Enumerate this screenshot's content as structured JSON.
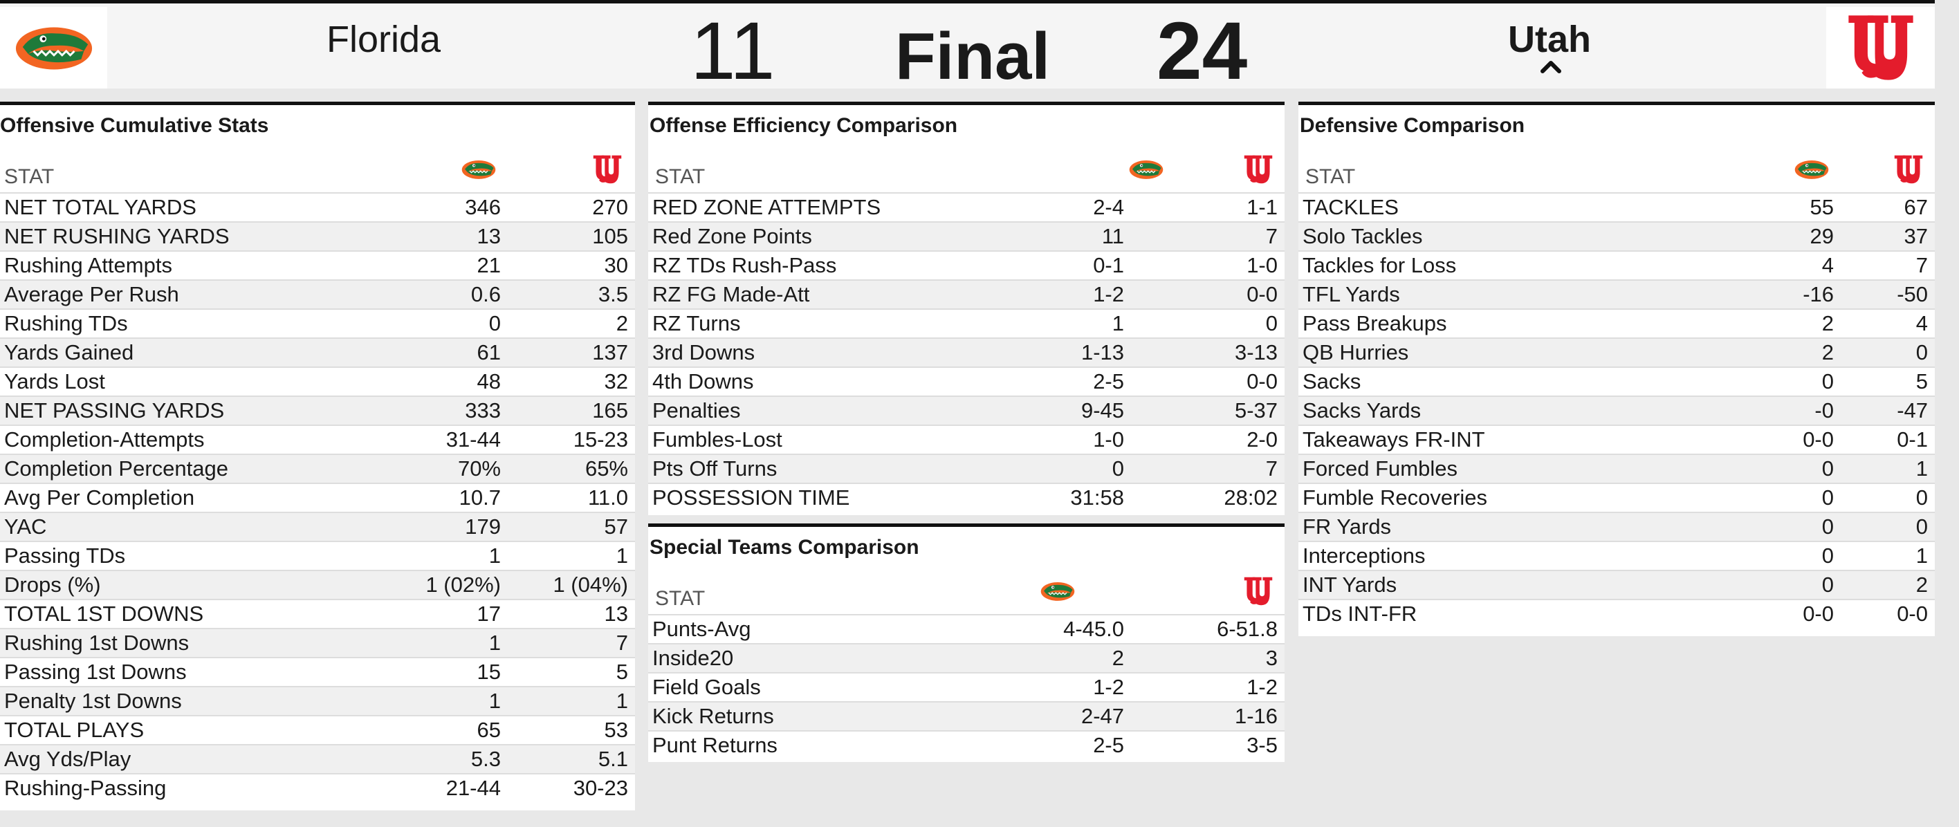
{
  "scoreboard": {
    "home_team": "Florida",
    "home_score": "11",
    "status": "Final",
    "away_score": "24",
    "away_team": "Utah"
  },
  "colors": {
    "florida_green": "#1e7a3a",
    "florida_orange": "#f26522",
    "utah_red": "#e41c2c"
  },
  "stat_header": "STAT",
  "offensive": {
    "title": "Offensive Cumulative Stats",
    "rows": [
      {
        "label": "NET TOTAL YARDS",
        "fla": "346",
        "utah": "270"
      },
      {
        "label": "NET RUSHING YARDS",
        "fla": "13",
        "utah": "105"
      },
      {
        "label": "Rushing Attempts",
        "fla": "21",
        "utah": "30"
      },
      {
        "label": "Average Per Rush",
        "fla": "0.6",
        "utah": "3.5"
      },
      {
        "label": "Rushing TDs",
        "fla": "0",
        "utah": "2"
      },
      {
        "label": "Yards Gained",
        "fla": "61",
        "utah": "137"
      },
      {
        "label": "Yards Lost",
        "fla": "48",
        "utah": "32"
      },
      {
        "label": "NET PASSING YARDS",
        "fla": "333",
        "utah": "165"
      },
      {
        "label": "Completion-Attempts",
        "fla": "31-44",
        "utah": "15-23"
      },
      {
        "label": "Completion Percentage",
        "fla": "70%",
        "utah": "65%"
      },
      {
        "label": "Avg Per Completion",
        "fla": "10.7",
        "utah": "11.0"
      },
      {
        "label": "YAC",
        "fla": "179",
        "utah": "57"
      },
      {
        "label": "Passing TDs",
        "fla": "1",
        "utah": "1"
      },
      {
        "label": "Drops (%)",
        "fla": "1 (02%)",
        "utah": "1 (04%)"
      },
      {
        "label": "TOTAL 1ST DOWNS",
        "fla": "17",
        "utah": "13"
      },
      {
        "label": "Rushing 1st Downs",
        "fla": "1",
        "utah": "7"
      },
      {
        "label": "Passing 1st Downs",
        "fla": "15",
        "utah": "5"
      },
      {
        "label": "Penalty 1st Downs",
        "fla": "1",
        "utah": "1"
      },
      {
        "label": "TOTAL PLAYS",
        "fla": "65",
        "utah": "53"
      },
      {
        "label": "Avg Yds/Play",
        "fla": "5.3",
        "utah": "5.1"
      },
      {
        "label": "Rushing-Passing",
        "fla": "21-44",
        "utah": "30-23"
      }
    ]
  },
  "efficiency": {
    "title": "Offense Efficiency Comparison",
    "rows": [
      {
        "label": "RED ZONE ATTEMPTS",
        "fla": "2-4",
        "utah": "1-1"
      },
      {
        "label": "Red Zone Points",
        "fla": "11",
        "utah": "7"
      },
      {
        "label": "RZ TDs Rush-Pass",
        "fla": "0-1",
        "utah": "1-0"
      },
      {
        "label": "RZ FG Made-Att",
        "fla": "1-2",
        "utah": "0-0"
      },
      {
        "label": "RZ Turns",
        "fla": "1",
        "utah": "0"
      },
      {
        "label": "3rd Downs",
        "fla": "1-13",
        "utah": "3-13"
      },
      {
        "label": "4th Downs",
        "fla": "2-5",
        "utah": "0-0"
      },
      {
        "label": "Penalties",
        "fla": "9-45",
        "utah": "5-37"
      },
      {
        "label": "Fumbles-Lost",
        "fla": "1-0",
        "utah": "2-0"
      },
      {
        "label": "Pts Off Turns",
        "fla": "0",
        "utah": "7"
      },
      {
        "label": "POSSESSION TIME",
        "fla": "31:58",
        "utah": "28:02"
      }
    ]
  },
  "special": {
    "title": "Special Teams Comparison",
    "rows": [
      {
        "label": "Punts-Avg",
        "fla": "4-45.0",
        "utah": "6-51.8"
      },
      {
        "label": "Inside20",
        "fla": "2",
        "utah": "3"
      },
      {
        "label": "Field Goals",
        "fla": "1-2",
        "utah": "1-2"
      },
      {
        "label": "Kick Returns",
        "fla": "2-47",
        "utah": "1-16"
      },
      {
        "label": "Punt Returns",
        "fla": "2-5",
        "utah": "3-5"
      }
    ]
  },
  "defensive": {
    "title": "Defensive Comparison",
    "rows": [
      {
        "label": "TACKLES",
        "fla": "55",
        "utah": "67"
      },
      {
        "label": "Solo Tackles",
        "fla": "29",
        "utah": "37"
      },
      {
        "label": "Tackles for Loss",
        "fla": "4",
        "utah": "7"
      },
      {
        "label": "TFL Yards",
        "fla": "-16",
        "utah": "-50"
      },
      {
        "label": "Pass Breakups",
        "fla": "2",
        "utah": "4"
      },
      {
        "label": "QB Hurries",
        "fla": "2",
        "utah": "0"
      },
      {
        "label": "Sacks",
        "fla": "0",
        "utah": "5"
      },
      {
        "label": "Sacks Yards",
        "fla": "-0",
        "utah": "-47"
      },
      {
        "label": "Takeaways FR-INT",
        "fla": "0-0",
        "utah": "0-1"
      },
      {
        "label": "Forced Fumbles",
        "fla": "0",
        "utah": "1"
      },
      {
        "label": "Fumble Recoveries",
        "fla": "0",
        "utah": "0"
      },
      {
        "label": "FR Yards",
        "fla": "0",
        "utah": "0"
      },
      {
        "label": "Interceptions",
        "fla": "0",
        "utah": "1"
      },
      {
        "label": "INT Yards",
        "fla": "0",
        "utah": "2"
      },
      {
        "label": "TDs INT-FR",
        "fla": "0-0",
        "utah": "0-0"
      }
    ]
  }
}
